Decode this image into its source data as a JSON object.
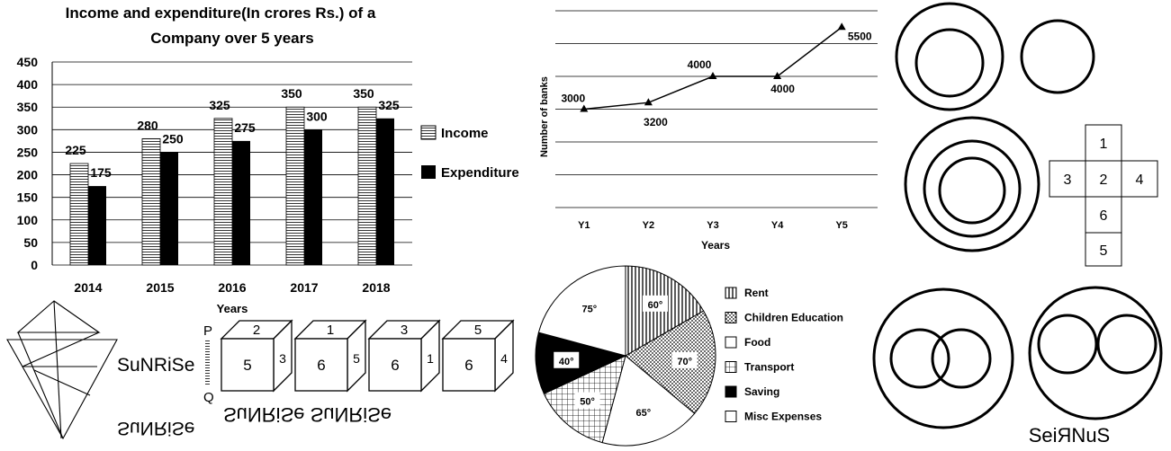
{
  "bar_chart_title_line1": "Income and expenditure(In crores Rs.) of a",
  "bar_chart_title_line2": "Company over 5 years",
  "bar_legend": {
    "income": "Income",
    "expenditure": "Expenditure"
  },
  "bar_xlabel": "Years",
  "line_ylabel": "Number of banks",
  "line_xlabel": "Years",
  "pie_legend": [
    "Rent",
    "Children Education",
    "Food",
    "Transport",
    "Saving",
    "Misc Expenses"
  ],
  "sunrise_text": "SuNRiSe",
  "sunrise_mirror_text": "SuNRiSe",
  "pq_labels": {
    "p": "P",
    "q": "Q"
  },
  "mirror_cube_text": "SuNRiSe SuNRiSe",
  "seirnus_text": "SeiЯNuS",
  "cubes": [
    {
      "top": "2",
      "front": "5",
      "side": "3"
    },
    {
      "top": "1",
      "front": "6",
      "side": "5"
    },
    {
      "top": "3",
      "front": "6",
      "side": "1"
    },
    {
      "top": "5",
      "front": "6",
      "side": "4"
    }
  ],
  "cube_net": {
    "top": "1",
    "left": "3",
    "center": "2",
    "right": "4",
    "below1": "6",
    "below2": "5"
  },
  "chart_data": [
    {
      "type": "bar",
      "title": "Income and expenditure(In crores Rs.) of a Company over 5 years",
      "xlabel": "Years",
      "ylabel": "",
      "categories": [
        "2014",
        "2015",
        "2016",
        "2017",
        "2018"
      ],
      "series": [
        {
          "name": "Income",
          "values": [
            225,
            280,
            325,
            350,
            350
          ]
        },
        {
          "name": "Expenditure",
          "values": [
            175,
            250,
            275,
            300,
            325
          ]
        }
      ],
      "ylim": [
        0,
        450
      ],
      "yticks": [
        "0",
        "50",
        "100",
        "150",
        "200",
        "250",
        "300",
        "350",
        "400",
        "450"
      ],
      "legend": "right",
      "grid": true
    },
    {
      "type": "line",
      "xlabel": "Years",
      "ylabel": "Number of banks",
      "categories": [
        "Y1",
        "Y2",
        "Y3",
        "Y4",
        "Y5"
      ],
      "series": [
        {
          "values": [
            3000,
            3200,
            4000,
            4000,
            5500
          ]
        }
      ],
      "ylim": [
        0,
        6000
      ],
      "grid": true
    },
    {
      "type": "pie",
      "categories": [
        "Rent",
        "Children Education",
        "Food",
        "Transport",
        "Saving",
        "Misc Expenses"
      ],
      "values": [
        60,
        70,
        65,
        50,
        40,
        75
      ],
      "labels": [
        "60°",
        "70°",
        "65°",
        "50°",
        "40°",
        "75°"
      ],
      "legend": "right"
    }
  ]
}
